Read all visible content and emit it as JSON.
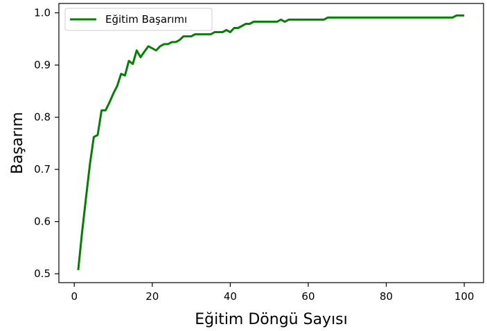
{
  "chart_data": {
    "type": "line",
    "title": "",
    "xlabel": "Eğitim Döngü Sayısı",
    "ylabel": "Başarım",
    "xlim": [
      -3.95,
      104.95
    ],
    "ylim": [
      0.483,
      1.018
    ],
    "xticks": [
      0,
      20,
      40,
      60,
      80,
      100
    ],
    "xtick_labels": [
      "0",
      "20",
      "40",
      "60",
      "80",
      "100"
    ],
    "yticks": [
      0.5,
      0.6,
      0.7,
      0.8,
      0.9,
      1.0
    ],
    "ytick_labels": [
      "0.5",
      "0.6",
      "0.7",
      "0.8",
      "0.9",
      "1.0"
    ],
    "grid": false,
    "legend_position": "top-left",
    "series": [
      {
        "name": "Eğitim Başarımı",
        "color": "#008000",
        "x": [
          1,
          2,
          3,
          4,
          5,
          6,
          7,
          8,
          9,
          10,
          11,
          12,
          13,
          14,
          15,
          16,
          17,
          18,
          19,
          20,
          21,
          22,
          23,
          24,
          25,
          26,
          27,
          28,
          29,
          30,
          31,
          32,
          33,
          34,
          35,
          36,
          37,
          38,
          39,
          40,
          41,
          42,
          43,
          44,
          45,
          46,
          47,
          48,
          49,
          50,
          51,
          52,
          53,
          54,
          55,
          56,
          57,
          58,
          59,
          60,
          61,
          62,
          63,
          64,
          65,
          66,
          67,
          68,
          69,
          70,
          71,
          72,
          73,
          74,
          75,
          76,
          77,
          78,
          79,
          80,
          81,
          82,
          83,
          84,
          85,
          86,
          87,
          88,
          89,
          90,
          91,
          92,
          93,
          94,
          95,
          96,
          97,
          98,
          99,
          100
        ],
        "y": [
          0.507,
          0.58,
          0.645,
          0.71,
          0.762,
          0.766,
          0.813,
          0.813,
          0.828,
          0.845,
          0.86,
          0.883,
          0.88,
          0.908,
          0.902,
          0.928,
          0.915,
          0.926,
          0.936,
          0.932,
          0.928,
          0.936,
          0.94,
          0.94,
          0.944,
          0.944,
          0.948,
          0.955,
          0.955,
          0.955,
          0.959,
          0.959,
          0.959,
          0.959,
          0.959,
          0.963,
          0.963,
          0.963,
          0.967,
          0.963,
          0.971,
          0.971,
          0.975,
          0.979,
          0.979,
          0.983,
          0.983,
          0.983,
          0.983,
          0.983,
          0.983,
          0.983,
          0.987,
          0.983,
          0.987,
          0.987,
          0.987,
          0.987,
          0.987,
          0.987,
          0.987,
          0.987,
          0.987,
          0.987,
          0.991,
          0.991,
          0.991,
          0.991,
          0.991,
          0.991,
          0.991,
          0.991,
          0.991,
          0.991,
          0.991,
          0.991,
          0.991,
          0.991,
          0.991,
          0.991,
          0.991,
          0.991,
          0.991,
          0.991,
          0.991,
          0.991,
          0.991,
          0.991,
          0.991,
          0.991,
          0.991,
          0.991,
          0.991,
          0.991,
          0.991,
          0.991,
          0.991,
          0.995,
          0.995,
          0.995
        ]
      }
    ]
  }
}
